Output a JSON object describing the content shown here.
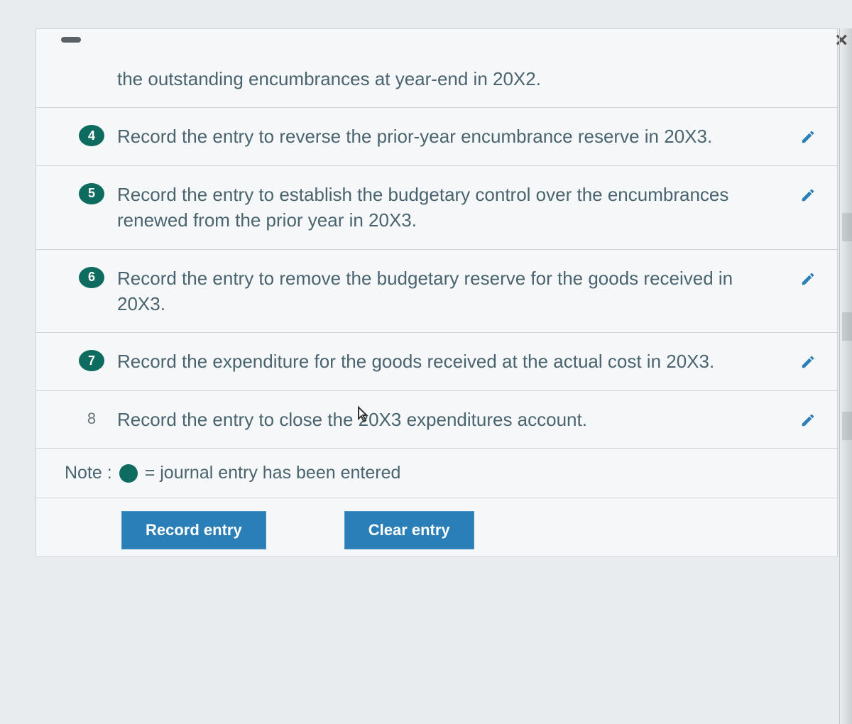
{
  "items": [
    {
      "number": "",
      "badge": false,
      "text": "the outstanding encumbrances at year-end in 20X2.",
      "editable": false
    },
    {
      "number": "4",
      "badge": true,
      "text": "Record the entry to reverse the prior-year encumbrance reserve in 20X3.",
      "editable": true
    },
    {
      "number": "5",
      "badge": true,
      "text": "Record the entry to establish the budgetary control over the encumbrances renewed from the prior year in 20X3.",
      "editable": true
    },
    {
      "number": "6",
      "badge": true,
      "text": "Record the entry to remove the budgetary reserve for the goods received in 20X3.",
      "editable": true
    },
    {
      "number": "7",
      "badge": true,
      "text": "Record the expenditure for the goods received at the actual cost in 20X3.",
      "editable": true
    },
    {
      "number": "8",
      "badge": false,
      "text": "Record the entry to close the 20X3 expenditures account.",
      "editable": true
    }
  ],
  "note": {
    "label": "Note :",
    "text": "= journal entry has been entered"
  },
  "buttons": {
    "record": "Record entry",
    "clear": "Clear entry"
  },
  "colors": {
    "badge": "#0d6b5f",
    "button": "#2b7fb8",
    "text": "#4a646f",
    "bg": "#e8ecef"
  }
}
